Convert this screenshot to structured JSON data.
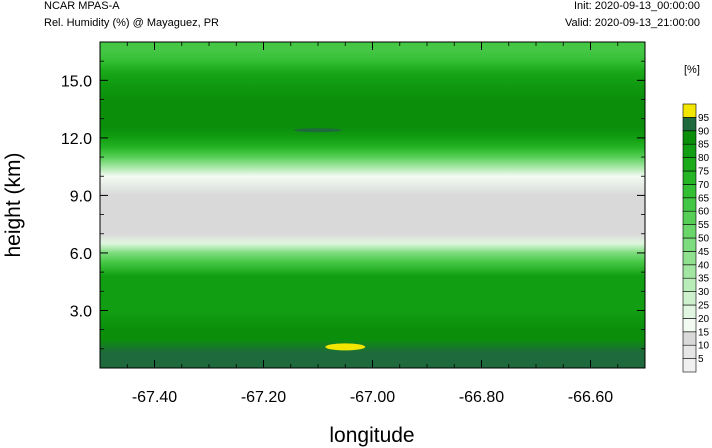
{
  "header": {
    "model": "NCAR MPAS-A",
    "field": "Rel. Humidity (%) @ Mayaguez, PR",
    "init": "Init: 2020-09-13_00:00:00",
    "valid": "Valid: 2020-09-13_21:00:00"
  },
  "chart_data": {
    "type": "heatmap",
    "xlabel": "longitude",
    "ylabel": "height (km)",
    "xlim": [
      -67.5,
      -66.5
    ],
    "ylim": [
      0,
      17
    ],
    "xticks": [
      -67.4,
      -67.2,
      -67.0,
      -66.8,
      -66.6
    ],
    "xtick_labels": [
      "-67.40",
      "-67.20",
      "-67.00",
      "-66.80",
      "-66.60"
    ],
    "yticks": [
      3,
      6,
      9,
      12,
      15
    ],
    "ytick_labels": [
      "3.0",
      "6.0",
      "9.0",
      "12.0",
      "15.0"
    ],
    "grid": false,
    "colorbar": {
      "title": "[%]",
      "levels": [
        5,
        10,
        15,
        20,
        25,
        30,
        35,
        40,
        45,
        50,
        55,
        60,
        65,
        70,
        75,
        80,
        85,
        90,
        95
      ],
      "labels": [
        "5",
        "10",
        "15",
        "20",
        "25",
        "30",
        "35",
        "40",
        "45",
        "50",
        "55",
        "60",
        "65",
        "70",
        "75",
        "80",
        "85",
        "90",
        "95"
      ],
      "colors": [
        "#f0f0f0",
        "#e6e6e6",
        "#d9d9d9",
        "#f2fbf2",
        "#e0f6e0",
        "#cdf1cd",
        "#b8ecb8",
        "#a3e6a3",
        "#8fe18f",
        "#7ddc7d",
        "#6ad66a",
        "#57cf57",
        "#44c744",
        "#33bf33",
        "#25b525",
        "#1aaa1a",
        "#129e12",
        "#0b8f0b",
        "#1e6a3c",
        "#f2e600"
      ]
    },
    "vertical_profile": [
      {
        "height_km": 0.3,
        "rh": 92
      },
      {
        "height_km": 0.8,
        "rh": 91
      },
      {
        "height_km": 1.5,
        "rh": 87
      },
      {
        "height_km": 2.0,
        "rh": 86
      },
      {
        "height_km": 3.0,
        "rh": 84
      },
      {
        "height_km": 4.0,
        "rh": 80
      },
      {
        "height_km": 4.8,
        "rh": 83
      },
      {
        "height_km": 5.5,
        "rh": 60
      },
      {
        "height_km": 6.0,
        "rh": 45
      },
      {
        "height_km": 6.5,
        "rh": 22
      },
      {
        "height_km": 7.0,
        "rh": 14
      },
      {
        "height_km": 8.0,
        "rh": 12
      },
      {
        "height_km": 9.0,
        "rh": 12
      },
      {
        "height_km": 10.0,
        "rh": 18
      },
      {
        "height_km": 10.5,
        "rh": 35
      },
      {
        "height_km": 11.0,
        "rh": 55
      },
      {
        "height_km": 11.5,
        "rh": 72
      },
      {
        "height_km": 12.0,
        "rh": 84
      },
      {
        "height_km": 12.5,
        "rh": 88
      },
      {
        "height_km": 13.0,
        "rh": 85
      },
      {
        "height_km": 14.0,
        "rh": 87
      },
      {
        "height_km": 15.0,
        "rh": 82
      },
      {
        "height_km": 15.5,
        "rh": 75
      },
      {
        "height_km": 16.0,
        "rh": 68
      },
      {
        "height_km": 16.5,
        "rh": 62
      }
    ],
    "features": [
      {
        "lon": -67.05,
        "height_km": 1.1,
        "rh": 96
      },
      {
        "lon": -67.1,
        "height_km": 12.4,
        "rh": 91
      }
    ]
  }
}
